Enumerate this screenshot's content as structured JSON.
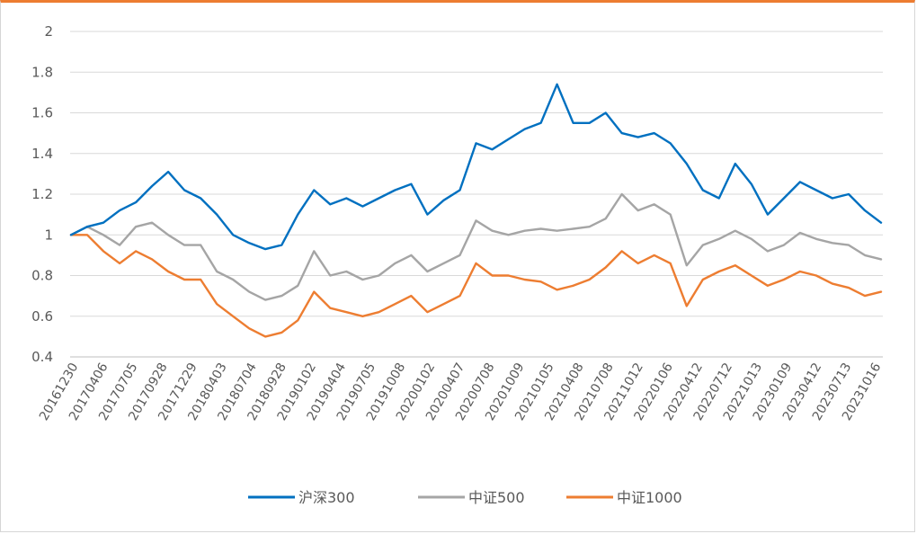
{
  "chart_data": {
    "type": "line",
    "title": "",
    "xlabel": "",
    "ylabel": "",
    "ylim": [
      0.4,
      2.0
    ],
    "yticks": [
      "2",
      "1.8",
      "1.6",
      "1.4",
      "1.2",
      "1",
      "0.8",
      "0.6",
      "0.4"
    ],
    "ytick_values": [
      2.0,
      1.8,
      1.6,
      1.4,
      1.2,
      1.0,
      0.8,
      0.6,
      0.4
    ],
    "grid": true,
    "legend_position": "bottom",
    "x_tick_labels": [
      "20161230",
      "20170406",
      "20170705",
      "20170928",
      "20171229",
      "20180403",
      "20180704",
      "20180928",
      "20190102",
      "20190404",
      "20190705",
      "20191008",
      "20200102",
      "20200407",
      "20200708",
      "20201009",
      "20210105",
      "20210408",
      "20210708",
      "20211012",
      "20220106",
      "20220412",
      "20220712",
      "20221013",
      "20230109",
      "20230412",
      "20230713",
      "20231016"
    ],
    "x": [
      "2016-12",
      "2017-02",
      "2017-04",
      "2017-06",
      "2017-08",
      "2017-10",
      "2017-12",
      "2018-01",
      "2018-02",
      "2018-04",
      "2018-06",
      "2018-08",
      "2018-10",
      "2018-12",
      "2019-01",
      "2019-02",
      "2019-04",
      "2019-06",
      "2019-08",
      "2019-10",
      "2019-12",
      "2020-01",
      "2020-02",
      "2020-03",
      "2020-04",
      "2020-06",
      "2020-07",
      "2020-08",
      "2020-10",
      "2020-12",
      "2021-02",
      "2021-03",
      "2021-04",
      "2021-06",
      "2021-08",
      "2021-10",
      "2021-12",
      "2022-01",
      "2022-03",
      "2022-04",
      "2022-05",
      "2022-07",
      "2022-08",
      "2022-10",
      "2022-12",
      "2023-02",
      "2023-04",
      "2023-06",
      "2023-08",
      "2023-10",
      "2023-12"
    ],
    "series": [
      {
        "name": "沪深300",
        "color": "#0070c0",
        "values": [
          1.0,
          1.04,
          1.06,
          1.12,
          1.16,
          1.24,
          1.31,
          1.22,
          1.18,
          1.1,
          1.0,
          0.96,
          0.93,
          0.95,
          1.1,
          1.22,
          1.15,
          1.18,
          1.14,
          1.18,
          1.22,
          1.25,
          1.1,
          1.17,
          1.22,
          1.45,
          1.42,
          1.47,
          1.52,
          1.55,
          1.74,
          1.55,
          1.55,
          1.6,
          1.5,
          1.48,
          1.5,
          1.45,
          1.35,
          1.22,
          1.18,
          1.35,
          1.25,
          1.1,
          1.18,
          1.26,
          1.22,
          1.18,
          1.2,
          1.12,
          1.06
        ]
      },
      {
        "name": "中证500",
        "color": "#a5a5a5",
        "values": [
          1.0,
          1.04,
          1.0,
          0.95,
          1.04,
          1.06,
          1.0,
          0.95,
          0.95,
          0.82,
          0.78,
          0.72,
          0.68,
          0.7,
          0.75,
          0.92,
          0.8,
          0.82,
          0.78,
          0.8,
          0.86,
          0.9,
          0.82,
          0.86,
          0.9,
          1.07,
          1.02,
          1.0,
          1.02,
          1.03,
          1.02,
          1.03,
          1.04,
          1.08,
          1.2,
          1.12,
          1.15,
          1.1,
          0.85,
          0.95,
          0.98,
          1.02,
          0.98,
          0.92,
          0.95,
          1.01,
          0.98,
          0.96,
          0.95,
          0.9,
          0.88
        ]
      },
      {
        "name": "中证1000",
        "color": "#ed7d31",
        "values": [
          1.0,
          1.0,
          0.92,
          0.86,
          0.92,
          0.88,
          0.82,
          0.78,
          0.78,
          0.66,
          0.6,
          0.54,
          0.5,
          0.52,
          0.58,
          0.72,
          0.64,
          0.62,
          0.6,
          0.62,
          0.66,
          0.7,
          0.62,
          0.66,
          0.7,
          0.86,
          0.8,
          0.8,
          0.78,
          0.77,
          0.73,
          0.75,
          0.78,
          0.84,
          0.92,
          0.86,
          0.9,
          0.86,
          0.65,
          0.78,
          0.82,
          0.85,
          0.8,
          0.75,
          0.78,
          0.82,
          0.8,
          0.76,
          0.74,
          0.7,
          0.72
        ]
      }
    ]
  }
}
